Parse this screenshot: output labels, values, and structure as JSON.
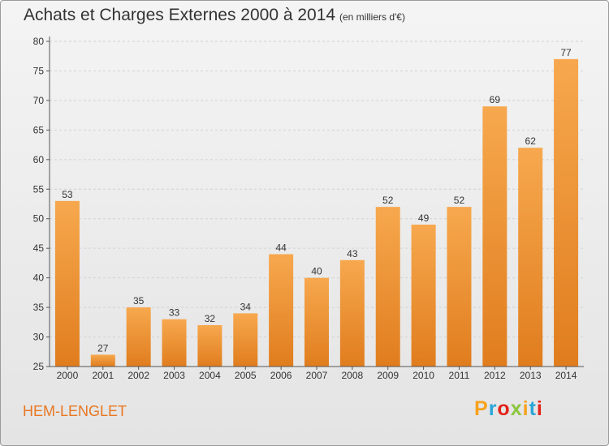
{
  "header": {
    "title": "Achats et Charges Externes 2000 à 2014",
    "unit_note": "(en milliers d'€)"
  },
  "footer": {
    "town": "HEM-LENGLET",
    "brand": "Proxiti",
    "town_color": "#e87722",
    "brand_colors": [
      "#f7a21b",
      "#2aa6d8",
      "#e2231a",
      "#8cc63f"
    ]
  },
  "colors": {
    "bar_light": "#f7a84e",
    "bar_dark": "#e07d1e",
    "grid": "#d2d2d2",
    "axis": "#555555",
    "text": "#333333"
  },
  "chart_data": {
    "type": "bar",
    "title": "Achats et Charges Externes 2000 à 2014",
    "subtitle": "(en milliers d'€)",
    "categories": [
      "2000",
      "2001",
      "2002",
      "2003",
      "2004",
      "2005",
      "2006",
      "2007",
      "2008",
      "2009",
      "2010",
      "2011",
      "2012",
      "2013",
      "2014"
    ],
    "values": [
      53,
      27,
      35,
      33,
      32,
      34,
      44,
      40,
      43,
      52,
      49,
      52,
      69,
      62,
      77
    ],
    "ylim": [
      25,
      80
    ],
    "yticks": [
      25,
      30,
      35,
      40,
      45,
      50,
      55,
      60,
      65,
      70,
      75,
      80
    ],
    "grid": true,
    "data_labels": true
  }
}
